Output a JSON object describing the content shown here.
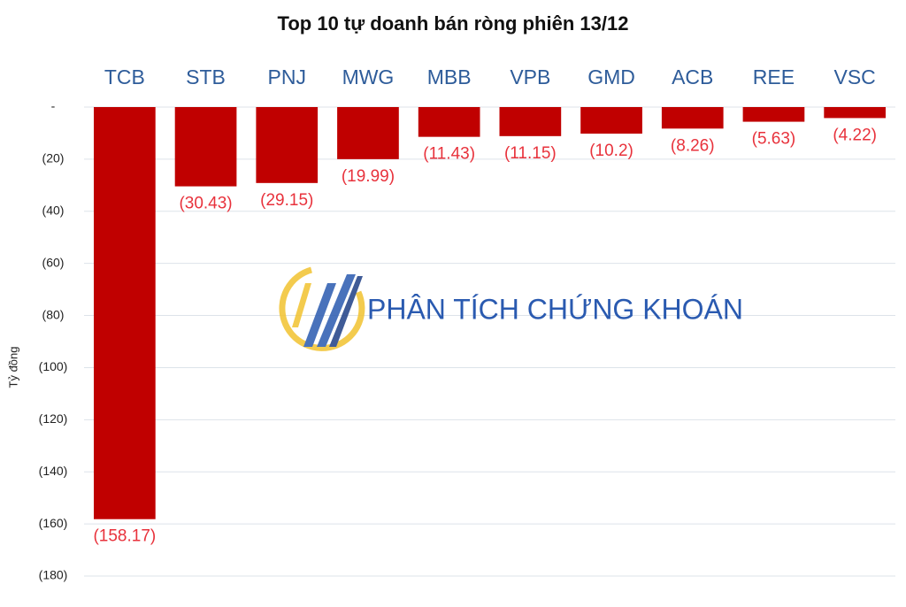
{
  "chart_data": {
    "type": "bar",
    "title": "Top 10 tự doanh bán ròng phiên 13/12",
    "y_label": "Tỷ đồng",
    "watermark": "PHÂN TÍCH CHỨNG KHOÁN",
    "categories": [
      "TCB",
      "STB",
      "PNJ",
      "MWG",
      "MBB",
      "VPB",
      "GMD",
      "ACB",
      "REE",
      "VSC"
    ],
    "values": [
      -158.17,
      -30.43,
      -29.15,
      -19.99,
      -11.43,
      -11.15,
      -10.2,
      -8.26,
      -5.63,
      -4.22
    ],
    "value_labels": [
      "(158.17)",
      "(30.43)",
      "(29.15)",
      "(19.99)",
      "(11.43)",
      "(11.15)",
      "(10.2)",
      "(8.26)",
      "(5.63)",
      "(4.22)"
    ],
    "color": "#c00000",
    "ylim": [
      -180,
      0
    ],
    "yticks": [
      {
        "value": 0,
        "label": "-"
      },
      {
        "value": -20,
        "label": "(20)"
      },
      {
        "value": -40,
        "label": "(40)"
      },
      {
        "value": -60,
        "label": "(60)"
      },
      {
        "value": -80,
        "label": "(80)"
      },
      {
        "value": -100,
        "label": "(100)"
      },
      {
        "value": -120,
        "label": "(120)"
      },
      {
        "value": -140,
        "label": "(140)"
      },
      {
        "value": -160,
        "label": "(160)"
      },
      {
        "value": -180,
        "label": "(180)"
      }
    ],
    "grid": true
  }
}
